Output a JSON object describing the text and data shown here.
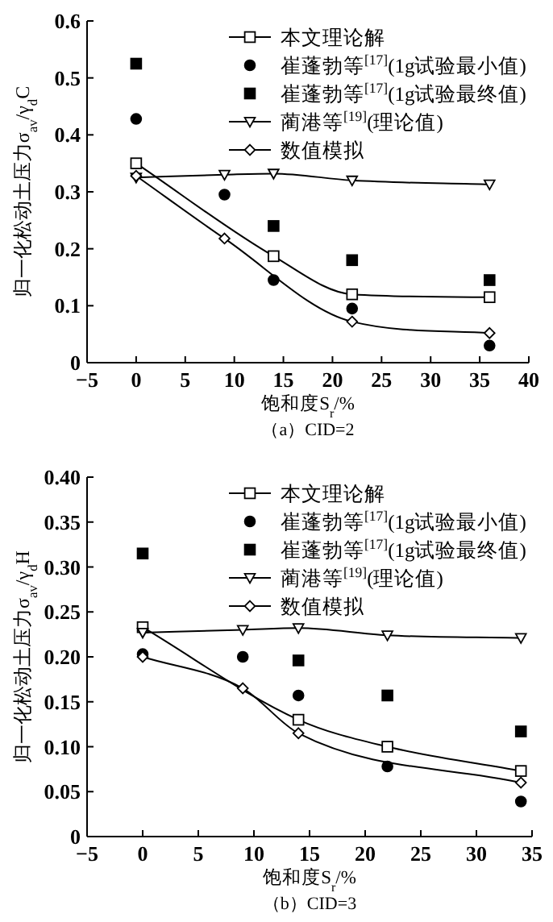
{
  "chart_data": [
    {
      "type": "line",
      "title": "（a）CID=2",
      "xlabel": "饱和度S$_{r}$/%",
      "ylabel": "归一化松动土压力σ$_{av}$/γ$_{d}$C",
      "xlim": [
        -5,
        40
      ],
      "xticks": [
        {
          "value": -5,
          "label": "−5"
        },
        0,
        5,
        10,
        15,
        20,
        25,
        30,
        35,
        40
      ],
      "ylim": [
        0,
        0.6
      ],
      "yticks": [
        0,
        0.1,
        0.2,
        0.3,
        0.4,
        0.5,
        0.6
      ],
      "legend": "top right",
      "grid": false,
      "series": [
        {
          "name": "本文理论解",
          "type": "line",
          "marker": "square",
          "color": "#000000",
          "x": [
            0,
            14,
            22,
            36
          ],
          "values": [
            0.35,
            0.187,
            0.12,
            0.115
          ]
        },
        {
          "name": "崔蓬勃等$^{[17]}$(1g试验最小值)",
          "type": "scatter",
          "marker": "circle",
          "color": "#000000",
          "x": [
            0,
            9,
            14,
            22,
            36
          ],
          "values": [
            0.428,
            0.295,
            0.145,
            0.095,
            0.03
          ]
        },
        {
          "name": "崔蓬勃等$^{[17]}$(1g试验最终值)",
          "type": "scatter",
          "marker": "square",
          "color": "#000000",
          "x": [
            0,
            14,
            22,
            36
          ],
          "values": [
            0.525,
            0.24,
            0.18,
            0.145
          ]
        },
        {
          "name": "蔺港等$^{[19]}$(理论值)",
          "type": "line",
          "marker": "triangle",
          "color": "#000000",
          "x": [
            0,
            9,
            14,
            22,
            36
          ],
          "values": [
            0.325,
            0.33,
            0.332,
            0.32,
            0.313
          ]
        },
        {
          "name": "数值模拟",
          "type": "line",
          "marker": "diamond",
          "color": "#000000",
          "x": [
            0,
            9,
            22,
            36
          ],
          "values": [
            0.328,
            0.218,
            0.072,
            0.052
          ]
        }
      ]
    },
    {
      "type": "line",
      "title": "（b）CID=3",
      "xlabel": "饱和度S$_{r}$/%",
      "ylabel": "归一化松动土压力σ$_{av}$/γ$_{d}$H",
      "xlim": [
        -5,
        35
      ],
      "xticks": [
        {
          "value": -5,
          "label": "−5"
        },
        0,
        5,
        10,
        15,
        20,
        25,
        30,
        35
      ],
      "ylim": [
        0,
        0.4
      ],
      "yticks": [
        0,
        {
          "value": 0.05,
          "label": "0.05"
        },
        {
          "value": 0.1,
          "label": "0.10"
        },
        {
          "value": 0.15,
          "label": "0.15"
        },
        {
          "value": 0.2,
          "label": "0.20"
        },
        {
          "value": 0.25,
          "label": "0.25"
        },
        {
          "value": 0.3,
          "label": "0.30"
        },
        {
          "value": 0.35,
          "label": "0.35"
        },
        {
          "value": 0.4,
          "label": "0.40"
        }
      ],
      "legend": "top right",
      "grid": false,
      "series": [
        {
          "name": "本文理论解",
          "type": "line",
          "marker": "square",
          "color": "#000000",
          "x": [
            0,
            14,
            22,
            34
          ],
          "values": [
            0.233,
            0.13,
            0.1,
            0.073
          ]
        },
        {
          "name": "崔蓬勃等$^{[17]}$(1g试验最小值)",
          "type": "scatter",
          "marker": "circle",
          "color": "#000000",
          "x": [
            0,
            9,
            14,
            22,
            34
          ],
          "values": [
            0.203,
            0.2,
            0.157,
            0.078,
            0.039
          ]
        },
        {
          "name": "崔蓬勃等$^{[17]}$(1g试验最终值)",
          "type": "scatter",
          "marker": "square",
          "color": "#000000",
          "x": [
            0,
            14,
            22,
            34
          ],
          "values": [
            0.315,
            0.196,
            0.157,
            0.117
          ]
        },
        {
          "name": "蔺港等$^{[19]}$(理论值)",
          "type": "line",
          "marker": "triangle",
          "color": "#000000",
          "x": [
            0,
            9,
            14,
            22,
            34
          ],
          "values": [
            0.227,
            0.23,
            0.232,
            0.224,
            0.221
          ]
        },
        {
          "name": "数值模拟",
          "type": "line",
          "marker": "diamond",
          "color": "#000000",
          "x": [
            0,
            9,
            14,
            34
          ],
          "values": [
            0.2,
            0.165,
            0.115,
            0.06
          ]
        }
      ]
    }
  ]
}
